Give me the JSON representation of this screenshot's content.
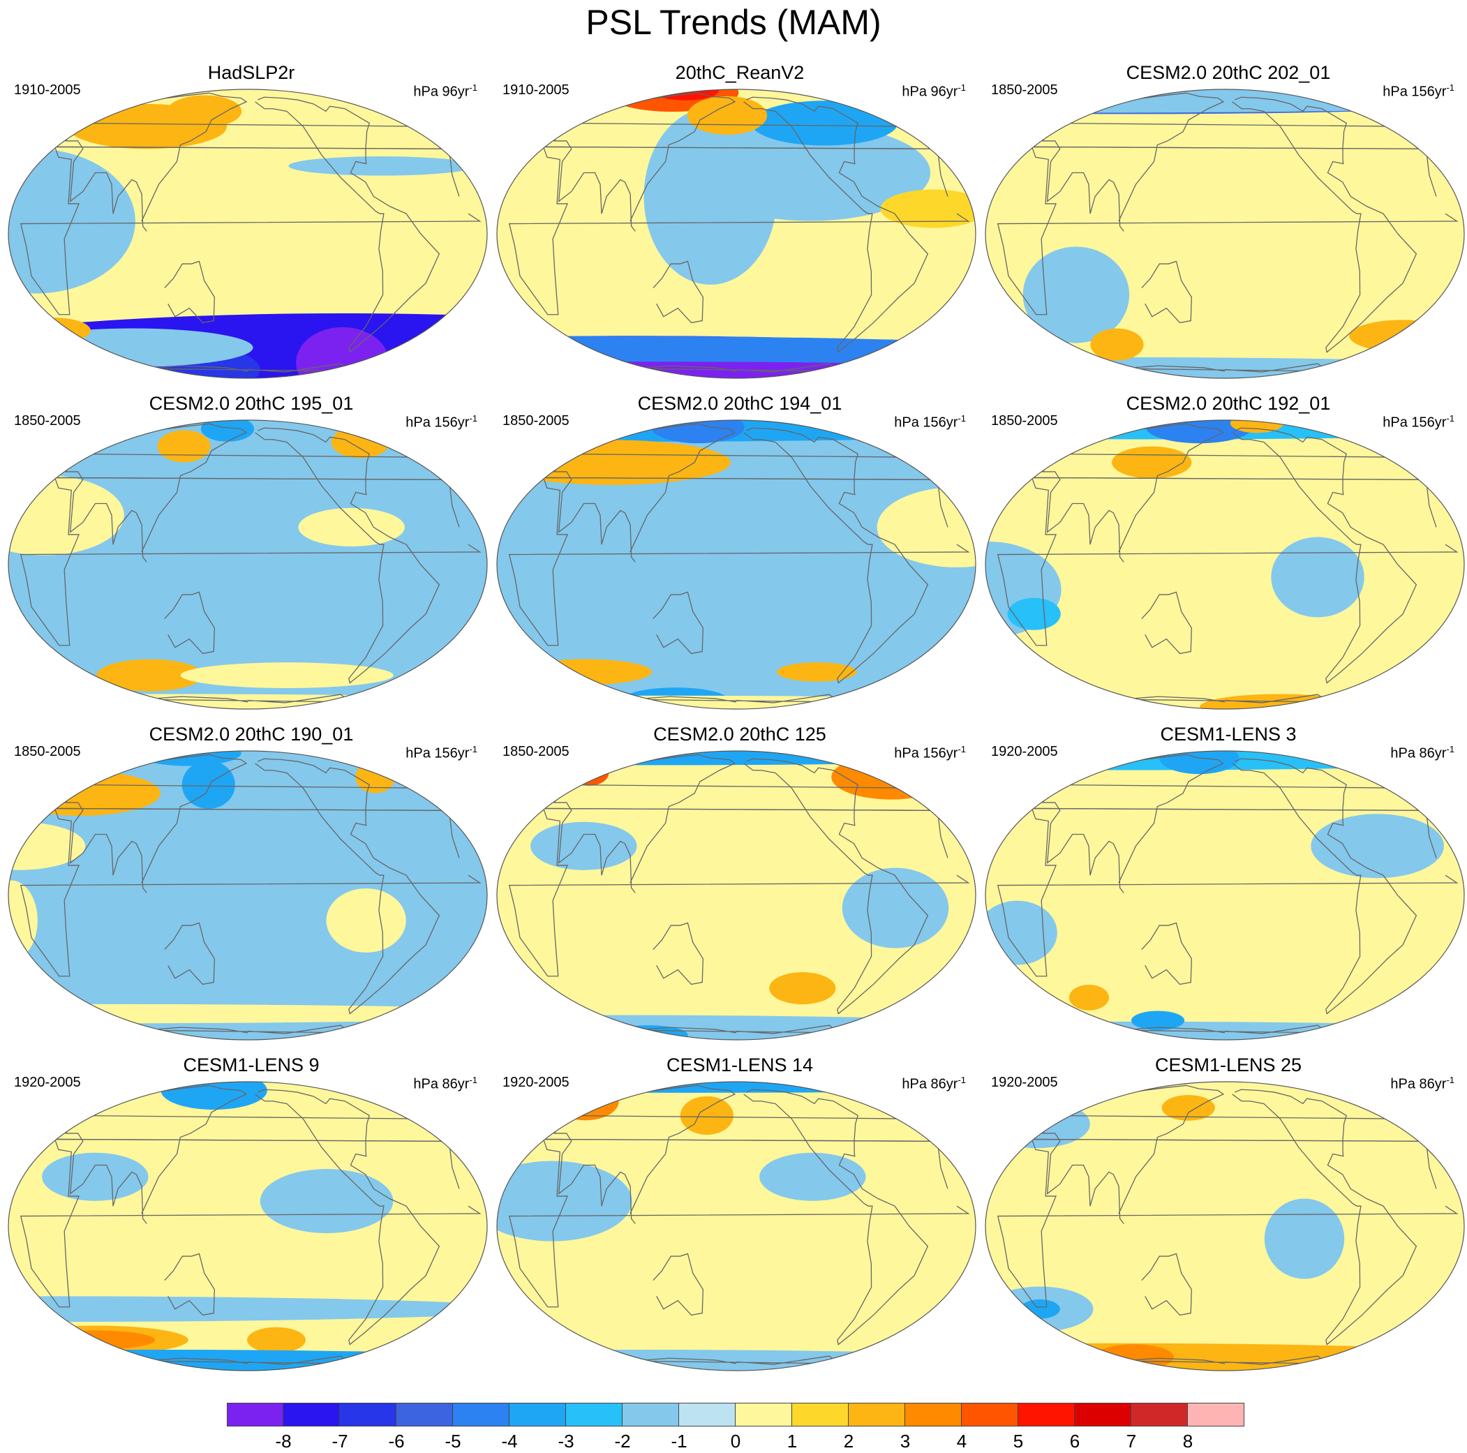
{
  "title": "PSL Trends (MAM)",
  "unit_superscript": "-1",
  "panels": [
    {
      "title": "HadSLP2r",
      "period": "1910-2005",
      "units": "hPa 96yr",
      "base": 0,
      "anomalies": [
        {
          "lon": -40,
          "lat": -70,
          "rx": 1500,
          "ry": 35,
          "v": -7
        },
        {
          "lon": -60,
          "lat": -63,
          "rx": 35,
          "ry": 22,
          "v": -8
        },
        {
          "lon": 80,
          "lat": -70,
          "rx": 60,
          "ry": 16,
          "v": -6
        },
        {
          "lon": 60,
          "lat": -52,
          "rx": 90,
          "ry": 12,
          "v": -1
        },
        {
          "lon": 0,
          "lat": -42,
          "rx": 28,
          "ry": 8,
          "v": 2
        },
        {
          "lon": 20,
          "lat": 5,
          "rx": 75,
          "ry": 45,
          "v": -1
        },
        {
          "lon": 80,
          "lat": 48,
          "rx": 60,
          "ry": 14,
          "v": 2
        },
        {
          "lon": 130,
          "lat": 58,
          "rx": 28,
          "ry": 10,
          "v": 2
        },
        {
          "lon": -70,
          "lat": 28,
          "rx": 70,
          "ry": 6,
          "v": -1
        }
      ]
    },
    {
      "title": "20thC_ReanV2",
      "period": "1910-2005",
      "units": "hPa 96yr",
      "base": 0,
      "anomalies": [
        {
          "lon": 20,
          "lat": -72,
          "rx": 1500,
          "ry": 22,
          "v": -7
        },
        {
          "lon": 20,
          "lat": -55,
          "rx": 1500,
          "ry": 10,
          "v": -4
        },
        {
          "lon": 0,
          "lat": -85,
          "rx": 1500,
          "ry": 10,
          "v": -8
        },
        {
          "lon": -120,
          "lat": 25,
          "rx": 90,
          "ry": 30,
          "v": -1
        },
        {
          "lon": 160,
          "lat": 15,
          "rx": 50,
          "ry": 55,
          "v": -1
        },
        {
          "lon": -90,
          "lat": 50,
          "rx": 55,
          "ry": 14,
          "v": -3
        },
        {
          "lon": 60,
          "lat": 78,
          "rx": 50,
          "ry": 12,
          "v": 4
        },
        {
          "lon": 70,
          "lat": 82,
          "rx": 25,
          "ry": 6,
          "v": 5
        },
        {
          "lon": 170,
          "lat": 55,
          "rx": 30,
          "ry": 12,
          "v": 2
        },
        {
          "lon": -30,
          "lat": 10,
          "rx": 40,
          "ry": 12,
          "v": 1
        }
      ]
    },
    {
      "title": "CESM2.0 20thC 202_01",
      "period": "1850-2005",
      "units": "hPa 156yr",
      "base": 0,
      "anomalies": [
        {
          "lon": 0,
          "lat": 80,
          "rx": 1500,
          "ry": 14,
          "v": -5
        },
        {
          "lon": 0,
          "lat": 68,
          "rx": 1500,
          "ry": 8,
          "v": -1
        },
        {
          "lon": 60,
          "lat": -25,
          "rx": 40,
          "ry": 30,
          "v": -1
        },
        {
          "lon": 0,
          "lat": -75,
          "rx": 1500,
          "ry": 10,
          "v": -1
        },
        {
          "lon": 70,
          "lat": -50,
          "rx": 20,
          "ry": 10,
          "v": 2
        },
        {
          "lon": -10,
          "lat": -45,
          "rx": 40,
          "ry": 10,
          "v": 2
        }
      ]
    },
    {
      "title": "CESM2.0 20thC 195_01",
      "period": "1850-2005",
      "units": "hPa 156yr",
      "base": -1,
      "anomalies": [
        {
          "lon": 20,
          "lat": 20,
          "rx": 60,
          "ry": 25,
          "v": 0
        },
        {
          "lon": -100,
          "lat": 15,
          "rx": 40,
          "ry": 12,
          "v": 0
        },
        {
          "lon": -50,
          "lat": 58,
          "rx": 22,
          "ry": 10,
          "v": 2
        },
        {
          "lon": 110,
          "lat": 55,
          "rx": 20,
          "ry": 10,
          "v": 2
        },
        {
          "lon": 80,
          "lat": -50,
          "rx": 40,
          "ry": 10,
          "v": 2
        },
        {
          "lon": 0,
          "lat": -80,
          "rx": 1500,
          "ry": 8,
          "v": 0
        },
        {
          "lon": -140,
          "lat": -50,
          "rx": 80,
          "ry": 8,
          "v": 0
        },
        {
          "lon": 150,
          "lat": 70,
          "rx": 20,
          "ry": 8,
          "v": -3
        }
      ]
    },
    {
      "title": "CESM2.0 20thC 194_01",
      "period": "1850-2005",
      "units": "hPa 156yr",
      "base": -1,
      "anomalies": [
        {
          "lon": 20,
          "lat": 80,
          "rx": 1500,
          "ry": 12,
          "v": -3
        },
        {
          "lon": 120,
          "lat": 72,
          "rx": 35,
          "ry": 10,
          "v": -4
        },
        {
          "lon": 60,
          "lat": 45,
          "rx": 90,
          "ry": 14,
          "v": 2
        },
        {
          "lon": -10,
          "lat": 15,
          "rx": 60,
          "ry": 25,
          "v": 0
        },
        {
          "lon": 30,
          "lat": -48,
          "rx": 50,
          "ry": 8,
          "v": 2
        },
        {
          "lon": -100,
          "lat": -48,
          "rx": 30,
          "ry": 6,
          "v": 2
        },
        {
          "lon": 90,
          "lat": -70,
          "rx": 40,
          "ry": 8,
          "v": -3
        },
        {
          "lon": 0,
          "lat": -85,
          "rx": 1500,
          "ry": 8,
          "v": 0
        }
      ]
    },
    {
      "title": "CESM2.0 20thC 192_01",
      "period": "1850-2005",
      "units": "hPa 156yr",
      "base": 0,
      "anomalies": [
        {
          "lon": 60,
          "lat": 78,
          "rx": 1500,
          "ry": 10,
          "v": -2
        },
        {
          "lon": 140,
          "lat": 72,
          "rx": 40,
          "ry": 10,
          "v": -4
        },
        {
          "lon": 0,
          "lat": -10,
          "rx": 55,
          "ry": 30,
          "v": -1
        },
        {
          "lon": 30,
          "lat": -20,
          "rx": 20,
          "ry": 10,
          "v": -2
        },
        {
          "lon": -110,
          "lat": -5,
          "rx": 35,
          "ry": 25,
          "v": -1
        },
        {
          "lon": -70,
          "lat": -80,
          "rx": 60,
          "ry": 8,
          "v": 2
        },
        {
          "lon": 110,
          "lat": 45,
          "rx": 30,
          "ry": 10,
          "v": 2
        },
        {
          "lon": -120,
          "lat": 78,
          "rx": 20,
          "ry": 6,
          "v": 2
        }
      ]
    },
    {
      "title": "CESM2.0 20thC 190_01",
      "period": "1850-2005",
      "units": "hPa 156yr",
      "base": -1,
      "anomalies": [
        {
          "lon": 20,
          "lat": 45,
          "rx": 60,
          "ry": 14,
          "v": 2
        },
        {
          "lon": -40,
          "lat": 55,
          "rx": 15,
          "ry": 10,
          "v": 2
        },
        {
          "lon": 0,
          "lat": 20,
          "rx": 50,
          "ry": 15,
          "v": 0
        },
        {
          "lon": 140,
          "lat": 50,
          "rx": 20,
          "ry": 15,
          "v": -3
        },
        {
          "lon": 0,
          "lat": -10,
          "rx": 20,
          "ry": 25,
          "v": 0
        },
        {
          "lon": -90,
          "lat": -10,
          "rx": 30,
          "ry": 20,
          "v": 0
        },
        {
          "lon": 0,
          "lat": -55,
          "rx": 1500,
          "ry": 6,
          "v": 0
        },
        {
          "lon": 60,
          "lat": 80,
          "rx": 40,
          "ry": 8,
          "v": -3
        }
      ]
    },
    {
      "title": "CESM2.0 20thC 125",
      "period": "1850-2005",
      "units": "hPa 156yr",
      "base": 0,
      "anomalies": [
        {
          "lon": -10,
          "lat": 55,
          "rx": 45,
          "ry": 14,
          "v": 3
        },
        {
          "lon": 10,
          "lat": 58,
          "rx": 15,
          "ry": 8,
          "v": 4
        },
        {
          "lon": 0,
          "lat": 82,
          "rx": 1500,
          "ry": 8,
          "v": -3
        },
        {
          "lon": -60,
          "lat": -5,
          "rx": 40,
          "ry": 25,
          "v": -1
        },
        {
          "lon": 60,
          "lat": 20,
          "rx": 40,
          "ry": 15,
          "v": -1
        },
        {
          "lon": -120,
          "lat": -40,
          "rx": 25,
          "ry": 10,
          "v": 2
        },
        {
          "lon": 0,
          "lat": -70,
          "rx": 1500,
          "ry": 10,
          "v": -1
        },
        {
          "lon": 30,
          "lat": -75,
          "rx": 30,
          "ry": 6,
          "v": -3
        }
      ]
    },
    {
      "title": "CESM1-LENS 3",
      "period": "1920-2005",
      "units": "hPa 86yr",
      "base": 0,
      "anomalies": [
        {
          "lon": 0,
          "lat": 78,
          "rx": 1500,
          "ry": 10,
          "v": -2
        },
        {
          "lon": 140,
          "lat": 72,
          "rx": 30,
          "ry": 10,
          "v": -3
        },
        {
          "lon": -60,
          "lat": 20,
          "rx": 50,
          "ry": 20,
          "v": -1
        },
        {
          "lon": 20,
          "lat": -15,
          "rx": 30,
          "ry": 20,
          "v": -1
        },
        {
          "lon": 0,
          "lat": -80,
          "rx": 1500,
          "ry": 10,
          "v": -1
        },
        {
          "lon": 50,
          "lat": -45,
          "rx": 15,
          "ry": 8,
          "v": 2
        },
        {
          "lon": 100,
          "lat": -60,
          "rx": 20,
          "ry": 6,
          "v": -3
        }
      ]
    },
    {
      "title": "CESM1-LENS 9",
      "period": "1920-2005",
      "units": "hPa 86yr",
      "base": 0,
      "anomalies": [
        {
          "lon": 20,
          "lat": -52,
          "rx": 70,
          "ry": 9,
          "v": 2
        },
        {
          "lon": 20,
          "lat": -52,
          "rx": 45,
          "ry": 6,
          "v": 3
        },
        {
          "lon": -150,
          "lat": -52,
          "rx": 22,
          "ry": 8,
          "v": 2
        },
        {
          "lon": 0,
          "lat": -75,
          "rx": 1500,
          "ry": 10,
          "v": -3
        },
        {
          "lon": 0,
          "lat": -35,
          "rx": 1500,
          "ry": 8,
          "v": -1
        },
        {
          "lon": 130,
          "lat": 70,
          "rx": 40,
          "ry": 12,
          "v": -3
        },
        {
          "lon": 60,
          "lat": 20,
          "rx": 40,
          "ry": 15,
          "v": -1
        },
        {
          "lon": -120,
          "lat": 10,
          "rx": 50,
          "ry": 20,
          "v": -1
        }
      ]
    },
    {
      "title": "CESM1-LENS 14",
      "period": "1920-2005",
      "units": "hPa 86yr",
      "base": 0,
      "anomalies": [
        {
          "lon": 0,
          "lat": 60,
          "rx": 25,
          "ry": 12,
          "v": 3
        },
        {
          "lon": 0,
          "lat": 62,
          "rx": 12,
          "ry": 6,
          "v": 4
        },
        {
          "lon": 80,
          "lat": 82,
          "rx": 1500,
          "ry": 6,
          "v": -3
        },
        {
          "lon": 40,
          "lat": 10,
          "rx": 60,
          "ry": 25,
          "v": -1
        },
        {
          "lon": -120,
          "lat": 20,
          "rx": 40,
          "ry": 15,
          "v": -1
        },
        {
          "lon": 0,
          "lat": -75,
          "rx": 1500,
          "ry": 10,
          "v": -1
        },
        {
          "lon": 150,
          "lat": 50,
          "rx": 20,
          "ry": 12,
          "v": 2
        }
      ]
    },
    {
      "title": "CESM1-LENS 25",
      "period": "1920-2005",
      "units": "hPa 86yr",
      "base": 0,
      "anomalies": [
        {
          "lon": 0,
          "lat": -75,
          "rx": 1500,
          "ry": 14,
          "v": 2
        },
        {
          "lon": 60,
          "lat": -65,
          "rx": 30,
          "ry": 8,
          "v": 3
        },
        {
          "lon": 20,
          "lat": -35,
          "rx": 40,
          "ry": 14,
          "v": -1
        },
        {
          "lon": 20,
          "lat": -35,
          "rx": 15,
          "ry": 6,
          "v": -3
        },
        {
          "lon": 0,
          "lat": 45,
          "rx": 40,
          "ry": 15,
          "v": -1
        },
        {
          "lon": -120,
          "lat": -5,
          "rx": 30,
          "ry": 25,
          "v": -1
        },
        {
          "lon": 140,
          "lat": 55,
          "rx": 20,
          "ry": 8,
          "v": 2
        }
      ]
    }
  ],
  "colorbar": {
    "labels": [
      "-8",
      "-7",
      "-6",
      "-5",
      "-4",
      "-3",
      "-2",
      "-1",
      "0",
      "1",
      "2",
      "3",
      "4",
      "5",
      "6",
      "7",
      "8"
    ],
    "colors": [
      "#7c22f0",
      "#2a14f0",
      "#2636e8",
      "#3c64e0",
      "#2c82f0",
      "#1ea6f5",
      "#28c0f8",
      "#84c8ec",
      "#bde3f3",
      "#fff79c",
      "#fdd82b",
      "#fcb512",
      "#ff8a00",
      "#ff5500",
      "#ff1400",
      "#dd0000",
      "#d02828",
      "#ffb4b4"
    ]
  }
}
